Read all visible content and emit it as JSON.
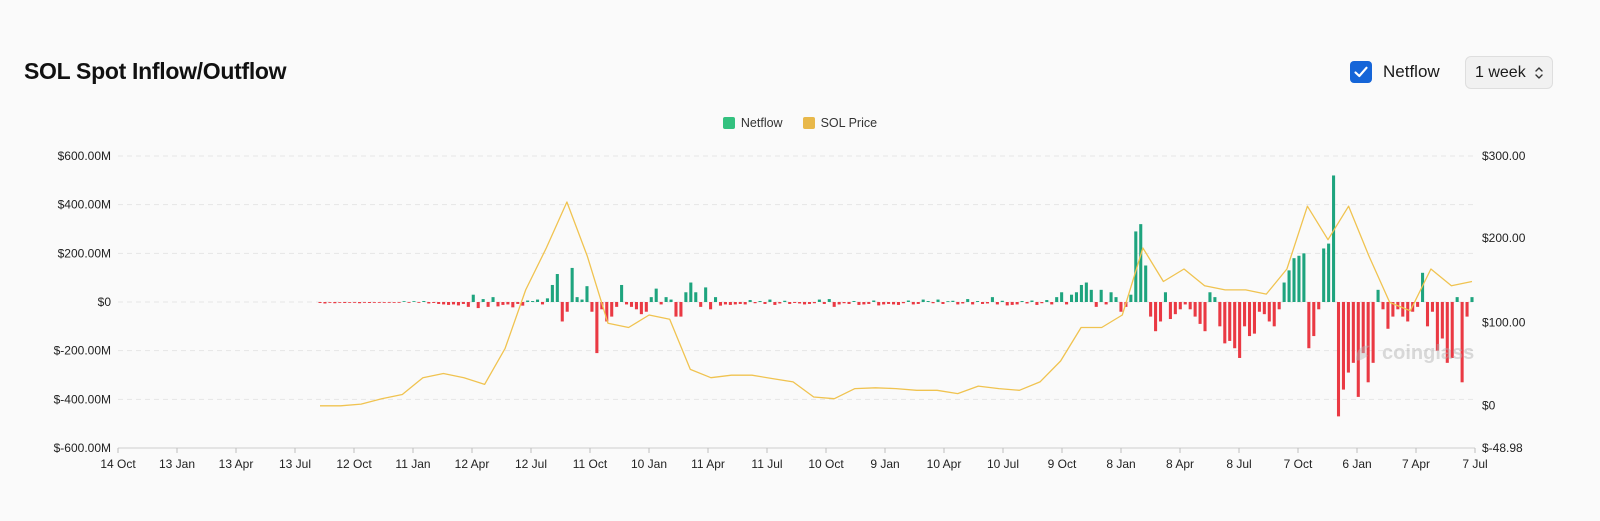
{
  "header": {
    "title": "SOL Spot Inflow/Outflow",
    "netflow_toggle": {
      "label": "Netflow",
      "checked": true
    },
    "period_select": {
      "selected": "1 week"
    }
  },
  "watermark": {
    "text": "coinglass"
  },
  "colors": {
    "positive": "#1ea47e",
    "negative": "#ea3943",
    "price": "#f0c350",
    "legend_netflow": "#33c17f",
    "legend_price": "#e8b84a",
    "checkbox": "#1565d8"
  },
  "chart_data": {
    "type": "bar",
    "legend": [
      {
        "name": "Netflow",
        "color": "#33c17f"
      },
      {
        "name": "SOL Price",
        "color": "#e8b84a"
      }
    ],
    "legend_position": "top-center",
    "grid": true,
    "y_left": {
      "ticks": [
        "$600.00M",
        "$400.00M",
        "$200.00M",
        "$0",
        "$-200.00M",
        "$-400.00M",
        "$-600.00M"
      ],
      "range": [
        -600,
        600
      ],
      "unit": "M USD"
    },
    "y_right": {
      "ticks": [
        "$300.00",
        "$200.00",
        "$100.00",
        "$0",
        "$-48.98"
      ],
      "range": [
        -48.98,
        300
      ]
    },
    "x_ticks": [
      "14 Oct",
      "13 Jan",
      "13 Apr",
      "13 Jul",
      "12 Oct",
      "11 Jan",
      "12 Apr",
      "12 Jul",
      "11 Oct",
      "10 Jan",
      "11 Apr",
      "11 Jul",
      "10 Oct",
      "9 Jan",
      "10 Apr",
      "10 Jul",
      "9 Oct",
      "8 Jan",
      "8 Apr",
      "8 Jul",
      "7 Oct",
      "6 Jan",
      "7 Apr",
      "7 Jul"
    ],
    "series": [
      {
        "name": "Netflow",
        "kind": "bar",
        "values": [
          -4,
          -6,
          -3,
          -5,
          -2,
          -4,
          -3,
          -2,
          -5,
          -3,
          -4,
          -2,
          -3,
          -2,
          -1,
          -3,
          -2,
          2,
          -2,
          3,
          -3,
          4,
          -6,
          -4,
          -8,
          -10,
          -12,
          -10,
          -14,
          -8,
          -20,
          30,
          -25,
          12,
          -20,
          20,
          -18,
          -12,
          -10,
          -22,
          -8,
          -15,
          6,
          4,
          10,
          -10,
          15,
          70,
          115,
          -80,
          -40,
          140,
          20,
          10,
          65,
          -40,
          -210,
          -30,
          -80,
          -60,
          -20,
          70,
          -10,
          -20,
          -30,
          -50,
          -40,
          20,
          55,
          -10,
          20,
          10,
          -60,
          -60,
          40,
          80,
          40,
          -20,
          60,
          -30,
          20,
          -15,
          -10,
          -12,
          -10,
          -8,
          -10,
          8,
          -5,
          4,
          -8,
          10,
          -12,
          -6,
          5,
          -8,
          -4,
          -6,
          -10,
          -8,
          -5,
          10,
          -8,
          12,
          -20,
          -10,
          -5,
          -8,
          4,
          -12,
          -10,
          -8,
          6,
          -14,
          -10,
          -8,
          -10,
          -12,
          -5,
          6,
          -10,
          -8,
          10,
          4,
          -5,
          10,
          -8,
          3,
          5,
          -10,
          -6,
          12,
          -10,
          4,
          -8,
          -6,
          20,
          -10,
          5,
          -14,
          -12,
          -10,
          4,
          -6,
          6,
          -12,
          -5,
          8,
          -10,
          20,
          40,
          -10,
          30,
          40,
          70,
          80,
          50,
          -20,
          50,
          -10,
          40,
          20,
          -40,
          -20,
          30,
          290,
          320,
          150,
          -60,
          -120,
          -80,
          40,
          -70,
          -50,
          -30,
          -10,
          -30,
          -60,
          -90,
          -120,
          40,
          20,
          -100,
          -170,
          -160,
          -190,
          -230,
          -100,
          -140,
          -130,
          -40,
          -50,
          -80,
          -100,
          -30,
          80,
          130,
          180,
          190,
          200,
          -190,
          -140,
          -30,
          220,
          240,
          520,
          -470,
          -360,
          -290,
          -250,
          -390,
          -210,
          -330,
          -250,
          50,
          -30,
          -110,
          -60,
          -30,
          -60,
          -80,
          -40,
          -20,
          120,
          -100,
          -40,
          -200,
          -150,
          -250,
          -230,
          20,
          -330,
          -60,
          20
        ],
        "note": "$M, one bar per week, Oct 2020 to Jul 2025"
      },
      {
        "name": "SOL Price",
        "kind": "line",
        "axis": "right",
        "points": [
          [
            "Oct 2020",
            1.5
          ],
          [
            "Dec 2020",
            1.4
          ],
          [
            "Jan 2021",
            3.5
          ],
          [
            "Feb 2021",
            10
          ],
          [
            "Mar 2021",
            15
          ],
          [
            "Apr 2021",
            35
          ],
          [
            "May 2021",
            40
          ],
          [
            "Jun 2021",
            35
          ],
          [
            "Jul 2021",
            27
          ],
          [
            "Aug 2021",
            70
          ],
          [
            "Sep 2021",
            140
          ],
          [
            "Oct 2021",
            190
          ],
          [
            "Nov 2021",
            245
          ],
          [
            "Dec 2021",
            180
          ],
          [
            "Jan 2022",
            100
          ],
          [
            "Feb 2022",
            95
          ],
          [
            "Mar 2022",
            110
          ],
          [
            "Apr 2022",
            105
          ],
          [
            "May 2022",
            45
          ],
          [
            "Jun 2022",
            35
          ],
          [
            "Jul 2022",
            38
          ],
          [
            "Aug 2022",
            38
          ],
          [
            "Sep 2022",
            34
          ],
          [
            "Oct 2022",
            30
          ],
          [
            "Nov 2022",
            12
          ],
          [
            "Dec 2022",
            10
          ],
          [
            "Jan 2023",
            22
          ],
          [
            "Feb 2023",
            23
          ],
          [
            "Mar 2023",
            22
          ],
          [
            "Apr 2023",
            20
          ],
          [
            "May 2023",
            20
          ],
          [
            "Jun 2023",
            16
          ],
          [
            "Jul 2023",
            25
          ],
          [
            "Aug 2023",
            22
          ],
          [
            "Sep 2023",
            20
          ],
          [
            "Oct 2023",
            30
          ],
          [
            "Nov 2023",
            55
          ],
          [
            "Dec 2023",
            95
          ],
          [
            "Jan 2024",
            95
          ],
          [
            "Feb 2024",
            110
          ],
          [
            "Mar 2024",
            190
          ],
          [
            "Apr 2024",
            150
          ],
          [
            "May 2024",
            165
          ],
          [
            "Jun 2024",
            145
          ],
          [
            "Jul 2024",
            140
          ],
          [
            "Aug 2024",
            140
          ],
          [
            "Sep 2024",
            135
          ],
          [
            "Oct 2024",
            165
          ],
          [
            "Nov 2024",
            240
          ],
          [
            "Dec 2024",
            200
          ],
          [
            "Jan 2025",
            240
          ],
          [
            "Feb 2025",
            180
          ],
          [
            "Mar 2025",
            125
          ],
          [
            "Apr 2025",
            115
          ],
          [
            "May 2025",
            165
          ],
          [
            "Jun 2025",
            145
          ],
          [
            "Jul 2025",
            150
          ]
        ]
      }
    ]
  }
}
